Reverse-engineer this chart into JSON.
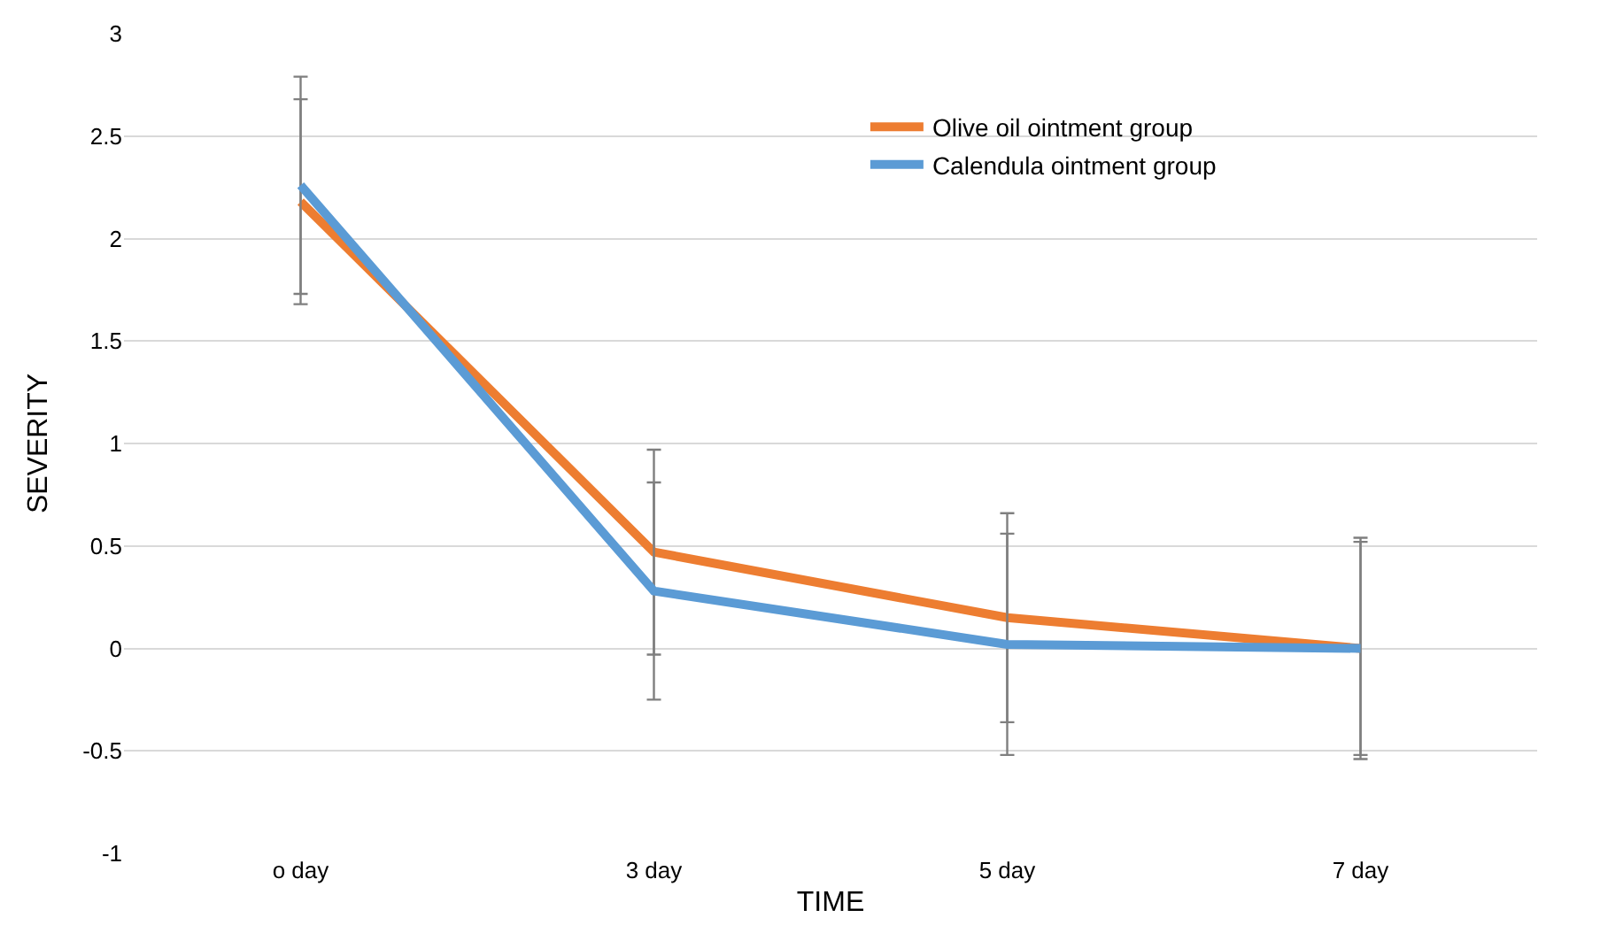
{
  "chart_data": {
    "type": "line",
    "xlabel": "TIME",
    "ylabel": "SEVERITY",
    "categories": [
      "o day",
      "3 day",
      "5 day",
      "7 day"
    ],
    "series": [
      {
        "name": "Olive oil ointment group",
        "color": "#ed7d31",
        "values": [
          2.18,
          0.47,
          0.15,
          0.0
        ],
        "errors": [
          0.5,
          0.5,
          0.51,
          0.54
        ]
      },
      {
        "name": "Calendula ointment group",
        "color": "#5b9bd5",
        "values": [
          2.26,
          0.28,
          0.02,
          0.0
        ],
        "errors": [
          0.53,
          0.53,
          0.54,
          0.52
        ]
      }
    ],
    "ylim": [
      -1,
      3
    ],
    "yticks": [
      -1,
      -0.5,
      0,
      0.5,
      1,
      1.5,
      2,
      2.5,
      3
    ],
    "grid": "y",
    "legend": "top right",
    "marker": "none",
    "line_style": "solid"
  }
}
